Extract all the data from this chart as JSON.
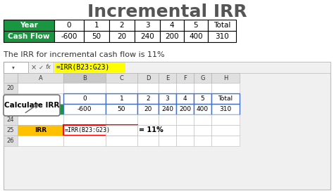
{
  "title": "Incremental IRR",
  "title_fontsize": 18,
  "title_color": "#555555",
  "bg_color": "#ffffff",
  "table1": {
    "headers": [
      "Year",
      "0",
      "1",
      "2",
      "3",
      "4",
      "5",
      "Total"
    ],
    "row_label": "Cash Flow",
    "values": [
      "-600",
      "50",
      "20",
      "240",
      "200",
      "400",
      "310"
    ],
    "header_bg": "#1a9641",
    "header_fg": "#ffffff",
    "cell_bg": "#ffffff",
    "border_color": "#000000"
  },
  "text_line": "The IRR for incremental cash flow is 11%",
  "text_fontsize": 8,
  "excel": {
    "formula_bar_text": "=IRR(B23:G23)",
    "formula_bar_bg": "#ffff00",
    "green_cell": "#1a9641",
    "yellow_cell": "#ffc000",
    "blue_outline": "#4472c4",
    "red_outline": "#ff0000",
    "callout_text": "Calculate IRR",
    "row25_formula": "=IRR(B23:G23)",
    "row25_result": "= 11%"
  }
}
